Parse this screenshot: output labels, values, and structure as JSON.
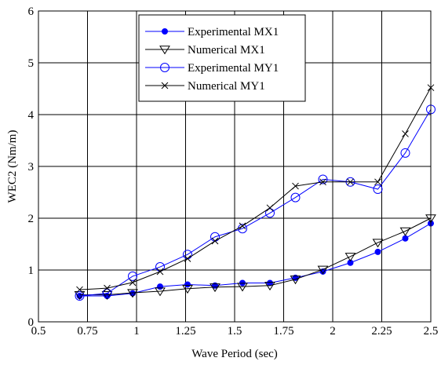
{
  "chart_data": {
    "type": "line",
    "xlabel": "Wave Period (sec)",
    "ylabel": "WEC2 (Nm/m)",
    "xlim": [
      0.5,
      2.5
    ],
    "ylim": [
      0,
      6
    ],
    "xticks": [
      "0.5",
      "0.75",
      "1",
      "1.25",
      "1.5",
      "1.75",
      "2",
      "2.25",
      "2.5"
    ],
    "yticks": [
      "0",
      "1",
      "2",
      "3",
      "4",
      "5",
      "6"
    ],
    "xtick_values": [
      0.5,
      0.75,
      1,
      1.25,
      1.5,
      1.75,
      2,
      2.25,
      2.5
    ],
    "ytick_values": [
      0,
      1,
      2,
      3,
      4,
      5,
      6
    ],
    "grid": true,
    "legend_position": "top-center",
    "series": [
      {
        "name": "Experimental MX1",
        "color": "#0000ff",
        "marker": "filled-circle",
        "x": [
          0.71,
          0.85,
          0.98,
          1.12,
          1.26,
          1.4,
          1.54,
          1.68,
          1.81,
          1.95,
          2.09,
          2.23,
          2.37,
          2.5
        ],
        "y": [
          0.5,
          0.5,
          0.55,
          0.68,
          0.72,
          0.7,
          0.75,
          0.75,
          0.85,
          0.97,
          1.14,
          1.35,
          1.61,
          1.9
        ]
      },
      {
        "name": "Numerical MX1",
        "color": "#000000",
        "marker": "triangle-down",
        "x": [
          0.71,
          0.85,
          0.98,
          1.12,
          1.26,
          1.4,
          1.54,
          1.68,
          1.81,
          1.95,
          2.09,
          2.23,
          2.37,
          2.5
        ],
        "y": [
          0.52,
          0.52,
          0.56,
          0.59,
          0.64,
          0.67,
          0.68,
          0.7,
          0.82,
          1.01,
          1.26,
          1.53,
          1.75,
          2.0
        ]
      },
      {
        "name": "Experimental MY1",
        "color": "#0000ff",
        "marker": "open-circle",
        "x": [
          0.71,
          0.85,
          0.98,
          1.12,
          1.26,
          1.4,
          1.54,
          1.68,
          1.81,
          1.95,
          2.09,
          2.23,
          2.37,
          2.5
        ],
        "y": [
          0.5,
          0.55,
          0.88,
          1.06,
          1.3,
          1.64,
          1.8,
          2.1,
          2.4,
          2.75,
          2.7,
          2.56,
          3.26,
          4.1
        ]
      },
      {
        "name": "Numerical MY1",
        "color": "#000000",
        "marker": "x",
        "x": [
          0.71,
          0.85,
          0.98,
          1.12,
          1.26,
          1.4,
          1.54,
          1.68,
          1.81,
          1.95,
          2.09,
          2.23,
          2.37,
          2.5
        ],
        "y": [
          0.62,
          0.65,
          0.76,
          0.97,
          1.22,
          1.56,
          1.85,
          2.2,
          2.62,
          2.7,
          2.7,
          2.7,
          3.63,
          4.52
        ]
      }
    ]
  }
}
